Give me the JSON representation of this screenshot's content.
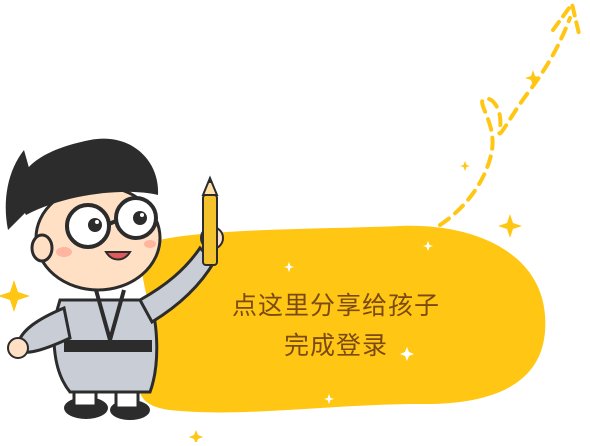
{
  "prompt": {
    "line1": "点这里分享给孩子",
    "line2": "完成登录"
  },
  "colors": {
    "bubble": "#ffc713",
    "sparkle": "#ffc713",
    "dashed_arrow": "#ffc713",
    "text": "#7a4a12",
    "robe": "#c9ced6",
    "hat": "#2c2c2c",
    "skin": "#ffe0c4",
    "pencil": "#f4c22a"
  },
  "icons": {
    "mascot": "scholar-mascot",
    "pencil": "pencil-icon",
    "arrow": "dashed-arrow-icon",
    "sparkles": "sparkle-icon"
  }
}
